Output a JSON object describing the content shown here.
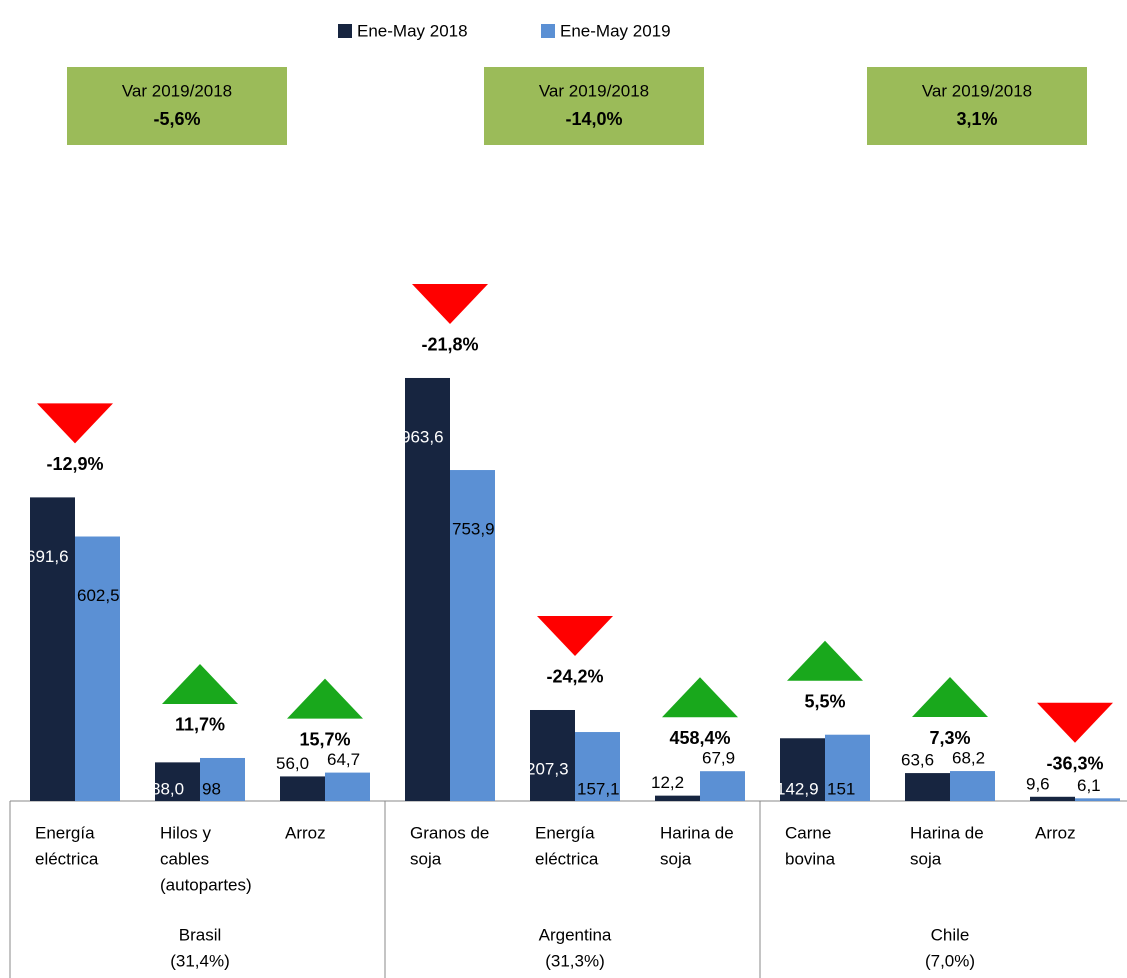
{
  "chart_data": {
    "type": "bar",
    "categories": [
      [
        "Energía",
        "eléctrica"
      ],
      [
        "Hilos y",
        "cables",
        "(autopartes)"
      ],
      [
        "Arroz"
      ],
      [
        "Granos de",
        "soja"
      ],
      [
        "Energía",
        "eléctrica"
      ],
      [
        "Harina de",
        "soja"
      ],
      [
        "Carne",
        "bovina"
      ],
      [
        "Harina de",
        "soja"
      ],
      [
        "Arroz"
      ]
    ],
    "series": [
      {
        "name": "Ene-May 2018",
        "color": "#172540",
        "values": [
          691.6,
          88.0,
          56.0,
          963.6,
          207.3,
          12.2,
          142.9,
          63.6,
          9.6
        ],
        "value_labels": [
          "691,6",
          "88,0",
          "56,0",
          "963,6",
          "207,3",
          "12,2",
          "142,9",
          "63,6",
          "9,6"
        ]
      },
      {
        "name": "Ene-May 2019",
        "color": "#5b90d4",
        "values": [
          602.5,
          98,
          64.7,
          753.9,
          157.1,
          67.9,
          151,
          68.2,
          6.1
        ],
        "value_labels": [
          "602,5",
          "98",
          "64,7",
          "753,9",
          "157,1",
          "67,9",
          "151",
          "68,2",
          "6,1"
        ]
      }
    ],
    "changes": {
      "values": [
        -12.9,
        11.7,
        15.7,
        -21.8,
        -24.2,
        458.4,
        5.5,
        7.3,
        -36.3
      ],
      "labels": [
        "-12,9%",
        "11,7%",
        "15,7%",
        "-21,8%",
        "-24,2%",
        "458,4%",
        "5,5%",
        "7,3%",
        "-36,3%"
      ],
      "up_color": "#19a81c",
      "down_color": "#ff0000"
    },
    "variation_label": "Var 2019/2018",
    "variation_box_color": "#9bbb59",
    "groups": [
      {
        "name": "Brasil",
        "share": "(31,4%)",
        "variation": "-5,6%",
        "first": 0,
        "count": 3
      },
      {
        "name": "Argentina",
        "share": "(31,3%)",
        "variation": "-14,0%",
        "first": 3,
        "count": 3
      },
      {
        "name": "Chile",
        "share": "(7,0%)",
        "variation": "3,1%",
        "first": 6,
        "count": 3
      }
    ]
  }
}
